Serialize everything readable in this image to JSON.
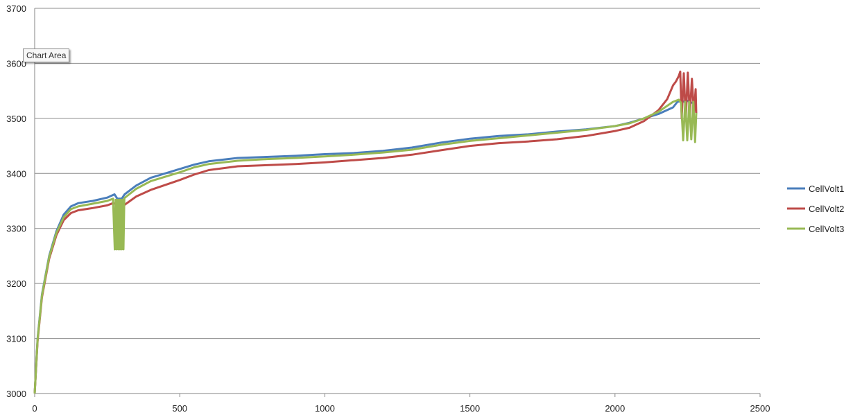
{
  "tooltip": "Chart Area",
  "chart_data": {
    "type": "line",
    "xlim": [
      0,
      2500
    ],
    "ylim": [
      3000,
      3700
    ],
    "x_ticks": [
      0,
      500,
      1000,
      1500,
      2000,
      2500
    ],
    "y_ticks": [
      3000,
      3100,
      3200,
      3300,
      3400,
      3500,
      3600,
      3700
    ],
    "grid": "horizontal",
    "legend_position": "right",
    "series": [
      {
        "name": "CellVolt1",
        "color": "#4a7ebb",
        "points": [
          [
            0,
            3000
          ],
          [
            10,
            3100
          ],
          [
            25,
            3180
          ],
          [
            50,
            3250
          ],
          [
            75,
            3295
          ],
          [
            100,
            3325
          ],
          [
            125,
            3340
          ],
          [
            150,
            3346
          ],
          [
            200,
            3350
          ],
          [
            250,
            3356
          ],
          [
            275,
            3362
          ],
          [
            285,
            3354
          ],
          [
            300,
            3354
          ],
          [
            310,
            3362
          ],
          [
            350,
            3378
          ],
          [
            400,
            3392
          ],
          [
            500,
            3408
          ],
          [
            550,
            3416
          ],
          [
            600,
            3422
          ],
          [
            700,
            3428
          ],
          [
            800,
            3430
          ],
          [
            900,
            3432
          ],
          [
            1000,
            3435
          ],
          [
            1100,
            3437
          ],
          [
            1200,
            3441
          ],
          [
            1300,
            3447
          ],
          [
            1400,
            3456
          ],
          [
            1500,
            3463
          ],
          [
            1600,
            3468
          ],
          [
            1700,
            3471
          ],
          [
            1800,
            3476
          ],
          [
            1900,
            3480
          ],
          [
            2000,
            3486
          ],
          [
            2050,
            3492
          ],
          [
            2100,
            3500
          ],
          [
            2150,
            3508
          ],
          [
            2200,
            3520
          ],
          [
            2215,
            3530
          ],
          [
            2230,
            3532
          ],
          [
            2240,
            3530
          ],
          [
            2250,
            3532
          ],
          [
            2260,
            3529
          ],
          [
            2270,
            3528
          ]
        ]
      },
      {
        "name": "CellVolt2",
        "color": "#be4b48",
        "points": [
          [
            0,
            3000
          ],
          [
            10,
            3095
          ],
          [
            25,
            3175
          ],
          [
            50,
            3245
          ],
          [
            75,
            3288
          ],
          [
            100,
            3315
          ],
          [
            125,
            3328
          ],
          [
            150,
            3333
          ],
          [
            200,
            3337
          ],
          [
            250,
            3342
          ],
          [
            270,
            3346
          ],
          [
            290,
            3343
          ],
          [
            310,
            3343
          ],
          [
            350,
            3358
          ],
          [
            400,
            3370
          ],
          [
            500,
            3388
          ],
          [
            550,
            3398
          ],
          [
            600,
            3406
          ],
          [
            700,
            3413
          ],
          [
            800,
            3415
          ],
          [
            900,
            3417
          ],
          [
            1000,
            3420
          ],
          [
            1100,
            3424
          ],
          [
            1200,
            3428
          ],
          [
            1300,
            3434
          ],
          [
            1400,
            3442
          ],
          [
            1500,
            3450
          ],
          [
            1600,
            3455
          ],
          [
            1700,
            3458
          ],
          [
            1800,
            3462
          ],
          [
            1900,
            3468
          ],
          [
            2000,
            3477
          ],
          [
            2050,
            3483
          ],
          [
            2100,
            3495
          ],
          [
            2150,
            3515
          ],
          [
            2180,
            3535
          ],
          [
            2200,
            3560
          ],
          [
            2210,
            3567
          ],
          [
            2220,
            3577
          ],
          [
            2225,
            3585
          ],
          [
            2230,
            3500
          ],
          [
            2237,
            3582
          ],
          [
            2244,
            3500
          ],
          [
            2251,
            3583
          ],
          [
            2258,
            3505
          ],
          [
            2265,
            3572
          ],
          [
            2272,
            3510
          ],
          [
            2278,
            3553
          ],
          [
            2280,
            3508
          ]
        ]
      },
      {
        "name": "CellVolt3",
        "color": "#98b954",
        "points": [
          [
            0,
            3000
          ],
          [
            10,
            3098
          ],
          [
            25,
            3178
          ],
          [
            50,
            3248
          ],
          [
            75,
            3292
          ],
          [
            100,
            3320
          ],
          [
            125,
            3335
          ],
          [
            150,
            3340
          ],
          [
            200,
            3345
          ],
          [
            250,
            3350
          ],
          [
            270,
            3354
          ],
          [
            276,
            3262
          ],
          [
            279,
            3352
          ],
          [
            282,
            3262
          ],
          [
            285,
            3352
          ],
          [
            288,
            3262
          ],
          [
            291,
            3352
          ],
          [
            294,
            3262
          ],
          [
            297,
            3352
          ],
          [
            300,
            3262
          ],
          [
            303,
            3352
          ],
          [
            306,
            3262
          ],
          [
            309,
            3355
          ],
          [
            350,
            3372
          ],
          [
            400,
            3386
          ],
          [
            500,
            3402
          ],
          [
            550,
            3411
          ],
          [
            600,
            3417
          ],
          [
            700,
            3423
          ],
          [
            800,
            3426
          ],
          [
            900,
            3428
          ],
          [
            1000,
            3431
          ],
          [
            1100,
            3434
          ],
          [
            1200,
            3438
          ],
          [
            1300,
            3443
          ],
          [
            1400,
            3452
          ],
          [
            1500,
            3459
          ],
          [
            1600,
            3464
          ],
          [
            1700,
            3469
          ],
          [
            1800,
            3474
          ],
          [
            1900,
            3479
          ],
          [
            2000,
            3486
          ],
          [
            2050,
            3491
          ],
          [
            2100,
            3500
          ],
          [
            2150,
            3512
          ],
          [
            2200,
            3530
          ],
          [
            2220,
            3534
          ],
          [
            2228,
            3528
          ],
          [
            2235,
            3460
          ],
          [
            2242,
            3530
          ],
          [
            2249,
            3460
          ],
          [
            2256,
            3530
          ],
          [
            2263,
            3462
          ],
          [
            2270,
            3530
          ],
          [
            2276,
            3457
          ],
          [
            2280,
            3510
          ]
        ]
      }
    ]
  }
}
